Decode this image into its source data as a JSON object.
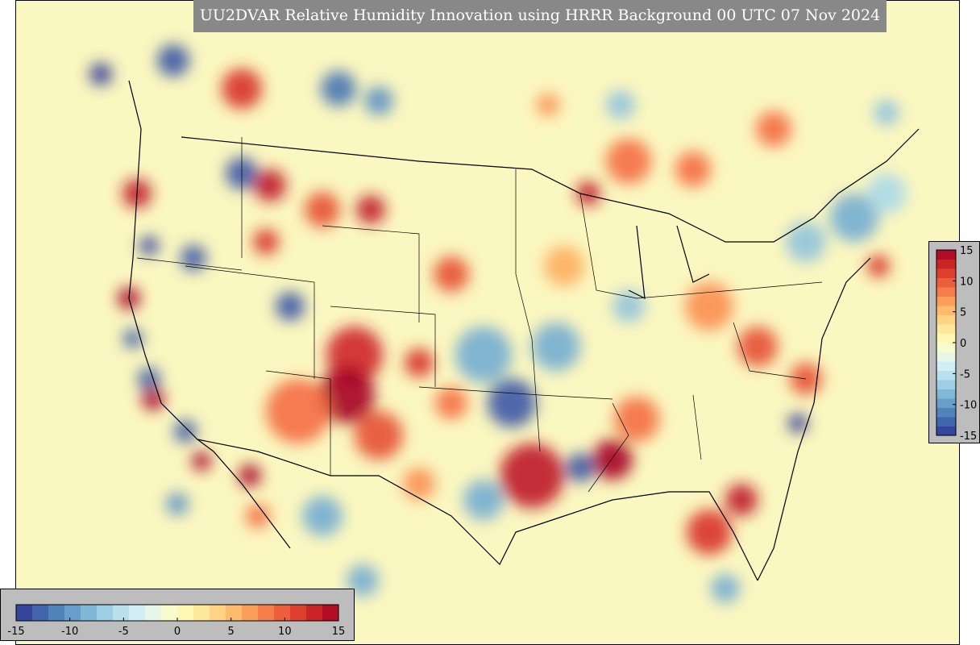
{
  "title": "UU2DVAR Relative Humidity Innovation using HRRR Background 00 UTC 07 Nov 2024",
  "colormap": [
    "#313695",
    "#4575b4",
    "#74add1",
    "#abd9e9",
    "#e0f3f8",
    "#ffffbf",
    "#fee090",
    "#fdae61",
    "#f46d43",
    "#d73027",
    "#a50026"
  ],
  "bottom_colorbar": {
    "range": [
      -15,
      15
    ],
    "ticks": [
      -15,
      -10,
      -5,
      0,
      5,
      10,
      15
    ]
  },
  "side_colorbar": {
    "range": [
      -15,
      15
    ],
    "ticks": [
      15,
      10,
      5,
      0,
      -5,
      -10,
      -15
    ]
  }
}
